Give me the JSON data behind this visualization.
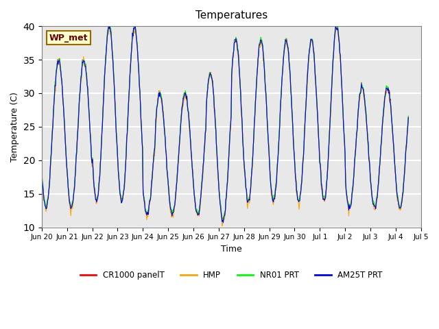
{
  "title": "Temperatures",
  "xlabel": "Time",
  "ylabel": "Temperature (C)",
  "ylim": [
    10,
    40
  ],
  "background_color": "#e8e8e8",
  "plot_bg_color": "#e8e8e8",
  "grid_color": "white",
  "annotation_text": "WP_met",
  "annotation_bg": "#ffffcc",
  "annotation_border": "#996600",
  "series_colors": [
    "red",
    "orange",
    "lime",
    "blue"
  ],
  "series_labels": [
    "CR1000 panelT",
    "HMP",
    "NR01 PRT",
    "AM25T PRT"
  ],
  "x_tick_labels": [
    "Jun 20",
    "Jun 21",
    "Jun 22",
    "Jun 23",
    "Jun 24",
    "Jun 25",
    "Jun 26",
    "Jun 27",
    "Jun 28",
    "Jun 29",
    "Jun 30",
    "Jul 1",
    "Jul 2",
    "Jul 3",
    "Jul 4",
    "Jul 5"
  ],
  "n_points_per_day": 48,
  "n_days": 15.5,
  "seed": 42
}
